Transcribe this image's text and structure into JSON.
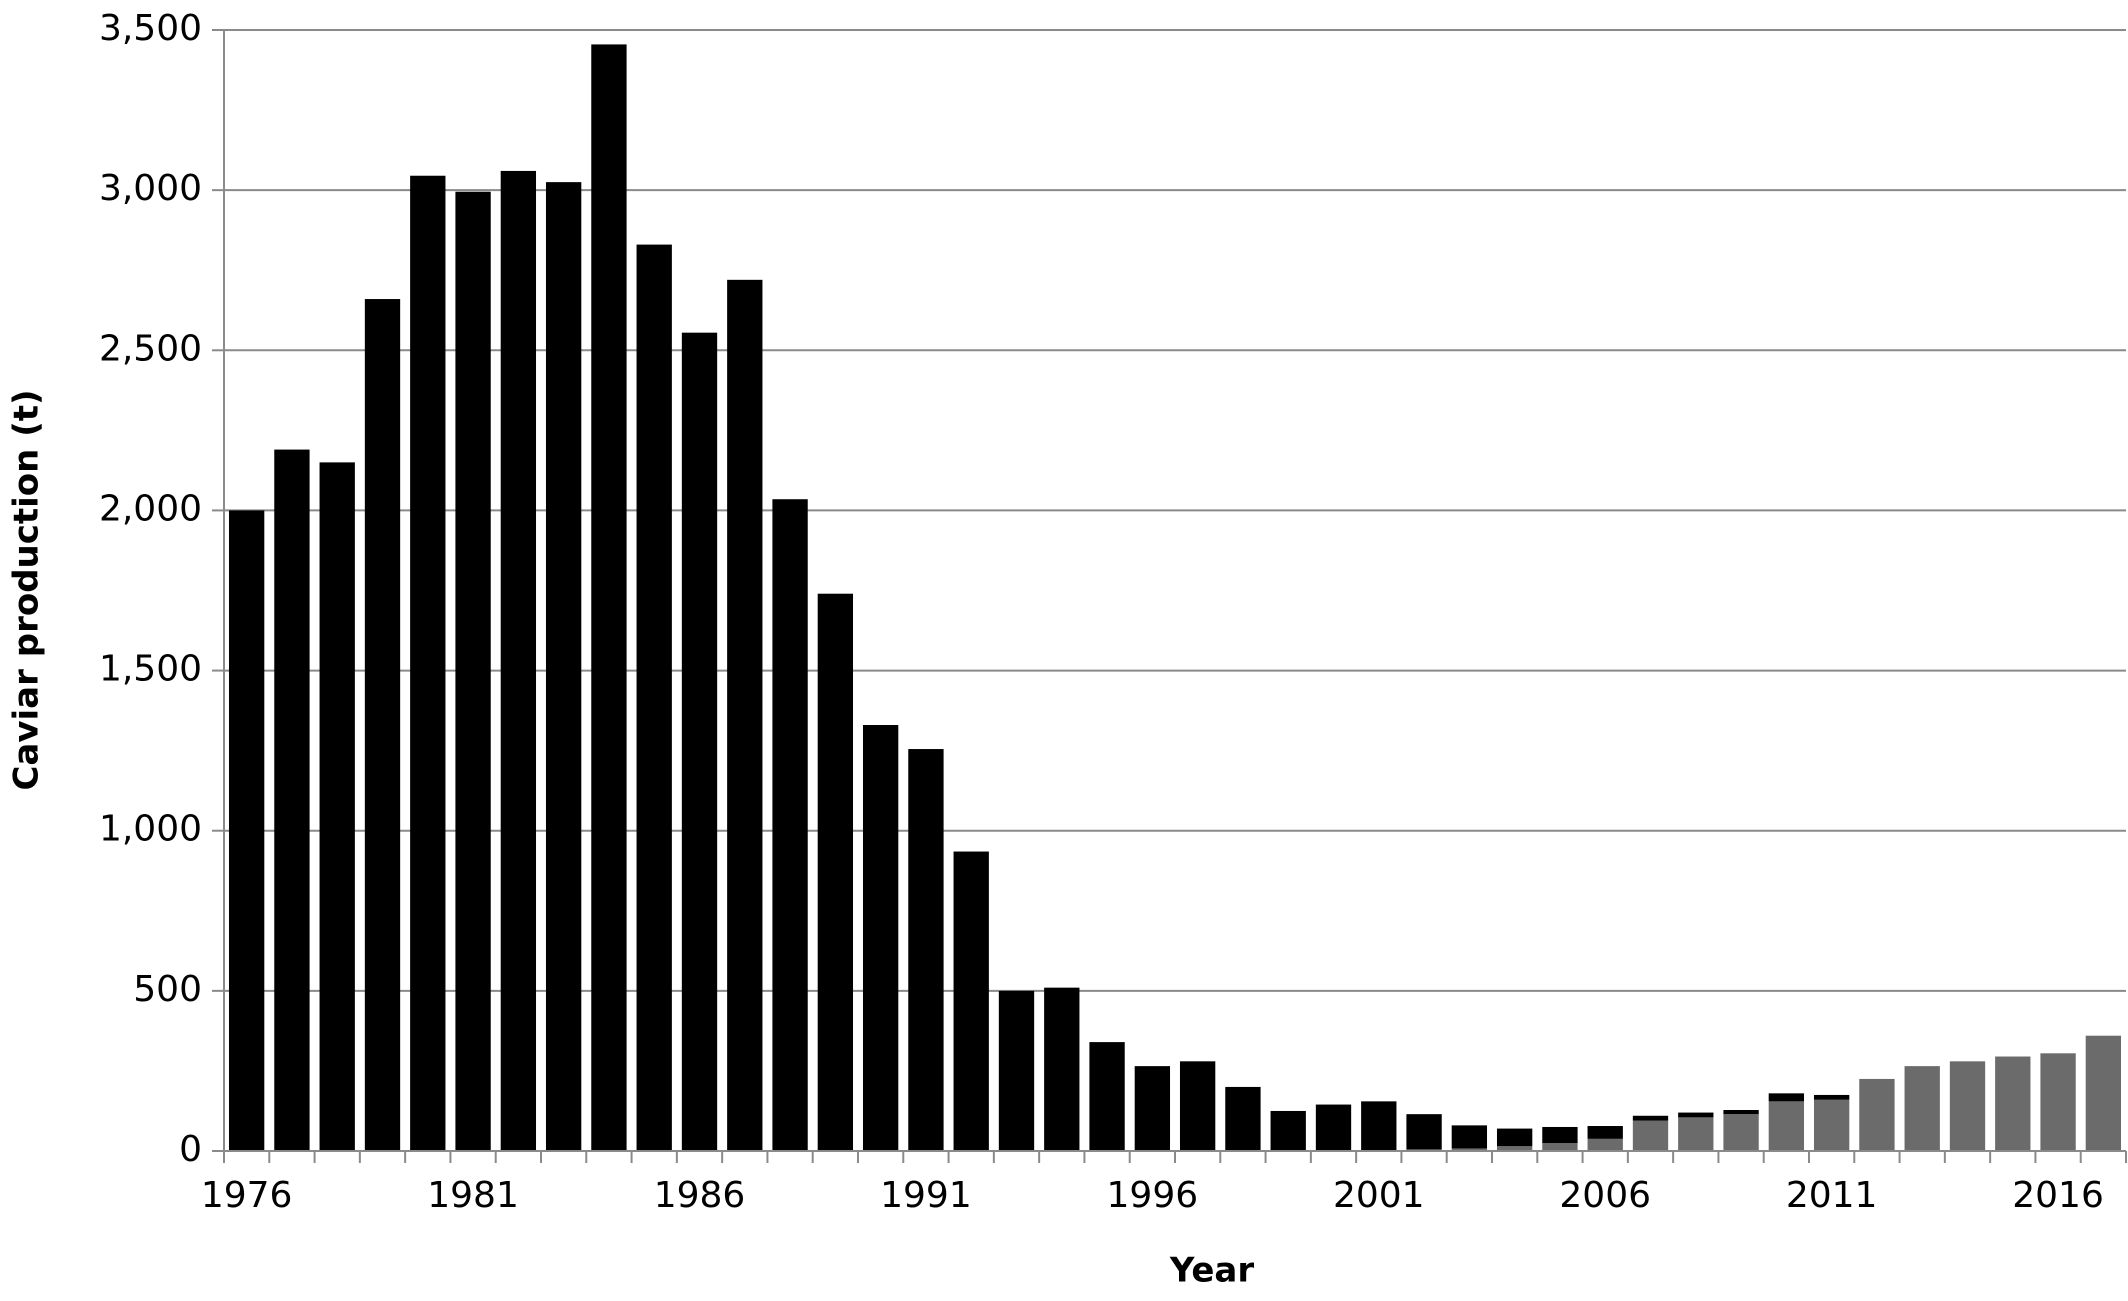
{
  "chart_data": {
    "type": "stacked-bar",
    "x_label": "Year",
    "y_label": "Caviar production (t)",
    "categories": [
      "1976",
      null,
      null,
      null,
      null,
      "1981",
      null,
      null,
      null,
      null,
      "1986",
      null,
      null,
      null,
      null,
      "1991",
      null,
      null,
      null,
      null,
      "1996",
      null,
      null,
      null,
      null,
      "2001",
      null,
      null,
      null,
      null,
      "2006",
      null,
      null,
      null,
      null,
      "2011",
      null,
      null,
      null,
      null,
      "2016",
      null
    ],
    "series": [
      {
        "color": "#6b6b6b",
        "values": [
          0,
          0,
          0,
          0,
          0,
          0,
          0,
          0,
          0,
          0,
          0,
          0,
          0,
          0,
          0,
          0,
          0,
          0,
          0,
          0,
          0,
          0,
          0,
          0,
          0,
          3,
          5,
          8,
          15,
          25,
          38,
          95,
          105,
          115,
          155,
          160,
          225,
          265,
          280,
          295,
          305,
          360
        ]
      },
      {
        "color": "#000000",
        "values": [
          2000,
          2190,
          2150,
          2660,
          3045,
          2995,
          3060,
          3025,
          3455,
          2830,
          2555,
          2720,
          2035,
          1740,
          1330,
          1255,
          935,
          500,
          510,
          340,
          265,
          280,
          200,
          125,
          145,
          152,
          110,
          72,
          55,
          50,
          40,
          15,
          15,
          13,
          25,
          15,
          0,
          0,
          0,
          0,
          0,
          0
        ]
      }
    ],
    "ylim": [
      0,
      3500
    ],
    "yticks": [
      0,
      500,
      {
        "value": 1000,
        "label": "1,000"
      },
      {
        "value": 1500,
        "label": "1,500"
      },
      {
        "value": 2000,
        "label": "2,000"
      },
      {
        "value": 2500,
        "label": "2,500"
      },
      {
        "value": 3000,
        "label": "3,000"
      },
      {
        "value": 3500,
        "label": "3,500"
      }
    ],
    "grid": true
  }
}
